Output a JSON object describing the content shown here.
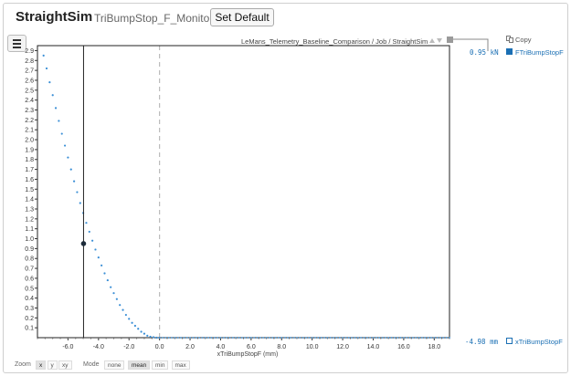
{
  "header": {
    "app_title": "StraightSim",
    "signal_name": "TriBumpStop_F_Monitor",
    "set_default_label": "Set Default"
  },
  "toolbar": {
    "menu_icon": "hamburger-icon",
    "breadcrumb": "LeMans_Telemetry_Baseline_Comparison / Job / StraightSim",
    "copy_label": "Copy"
  },
  "legend": {
    "y_series": {
      "value": "0.95",
      "unit": "kN",
      "label": "FTriBumpStopF",
      "color": "#1a6fb4"
    },
    "x_series": {
      "value": "-4.98",
      "unit": "mm",
      "label": "xTriBumpStopF",
      "color": "#1a6fb4"
    }
  },
  "footer": {
    "zoom_label": "Zoom",
    "zoom_options": [
      "x",
      "y",
      "xy"
    ],
    "zoom_active": "x",
    "mode_label": "Mode",
    "mode_options": [
      "none",
      "mean",
      "min",
      "max"
    ],
    "mode_active": "mean"
  },
  "chart_data": {
    "type": "scatter",
    "xlabel": "xTriBumpStopF (mm)",
    "ylabel": "",
    "xlim": [
      -8.0,
      19.0
    ],
    "ylim": [
      0.0,
      2.95
    ],
    "x_ticks": [
      "-6.0",
      "-4.0",
      "-2.0",
      "0.0",
      "2.0",
      "4.0",
      "6.0",
      "8.0",
      "10.0",
      "12.0",
      "14.0",
      "16.0",
      "18.0"
    ],
    "y_ticks": [
      "0.1",
      "0.2",
      "0.3",
      "0.4",
      "0.5",
      "0.6",
      "0.7",
      "0.8",
      "0.9",
      "1.0",
      "1.1",
      "1.2",
      "1.3",
      "1.4",
      "1.5",
      "1.6",
      "1.7",
      "1.8",
      "1.9",
      "2.0",
      "2.1",
      "2.2",
      "2.3",
      "2.4",
      "2.5",
      "2.6",
      "2.7",
      "2.8",
      "2.9"
    ],
    "series": [
      {
        "name": "FTriBumpStopF",
        "x": [
          -7.6,
          -7.4,
          -7.2,
          -7.0,
          -6.8,
          -6.6,
          -6.4,
          -6.2,
          -6.0,
          -5.8,
          -5.6,
          -5.4,
          -5.2,
          -5.0,
          -4.8,
          -4.6,
          -4.4,
          -4.2,
          -4.0,
          -3.8,
          -3.6,
          -3.4,
          -3.2,
          -3.0,
          -2.8,
          -2.6,
          -2.4,
          -2.2,
          -2.0,
          -1.8,
          -1.6,
          -1.4,
          -1.2,
          -1.0,
          -0.8,
          -0.6,
          -0.4,
          -0.2,
          0.0
        ],
        "y": [
          2.85,
          2.72,
          2.58,
          2.45,
          2.32,
          2.19,
          2.06,
          1.94,
          1.82,
          1.7,
          1.58,
          1.47,
          1.36,
          1.26,
          1.16,
          1.07,
          0.98,
          0.89,
          0.81,
          0.73,
          0.65,
          0.58,
          0.51,
          0.45,
          0.39,
          0.33,
          0.28,
          0.23,
          0.19,
          0.15,
          0.12,
          0.09,
          0.06,
          0.04,
          0.02,
          0.01,
          0.005,
          0.0,
          0.0
        ]
      }
    ],
    "cursor": {
      "x": -4.98,
      "y": 0.95
    },
    "zero_line_x": 0.0
  }
}
